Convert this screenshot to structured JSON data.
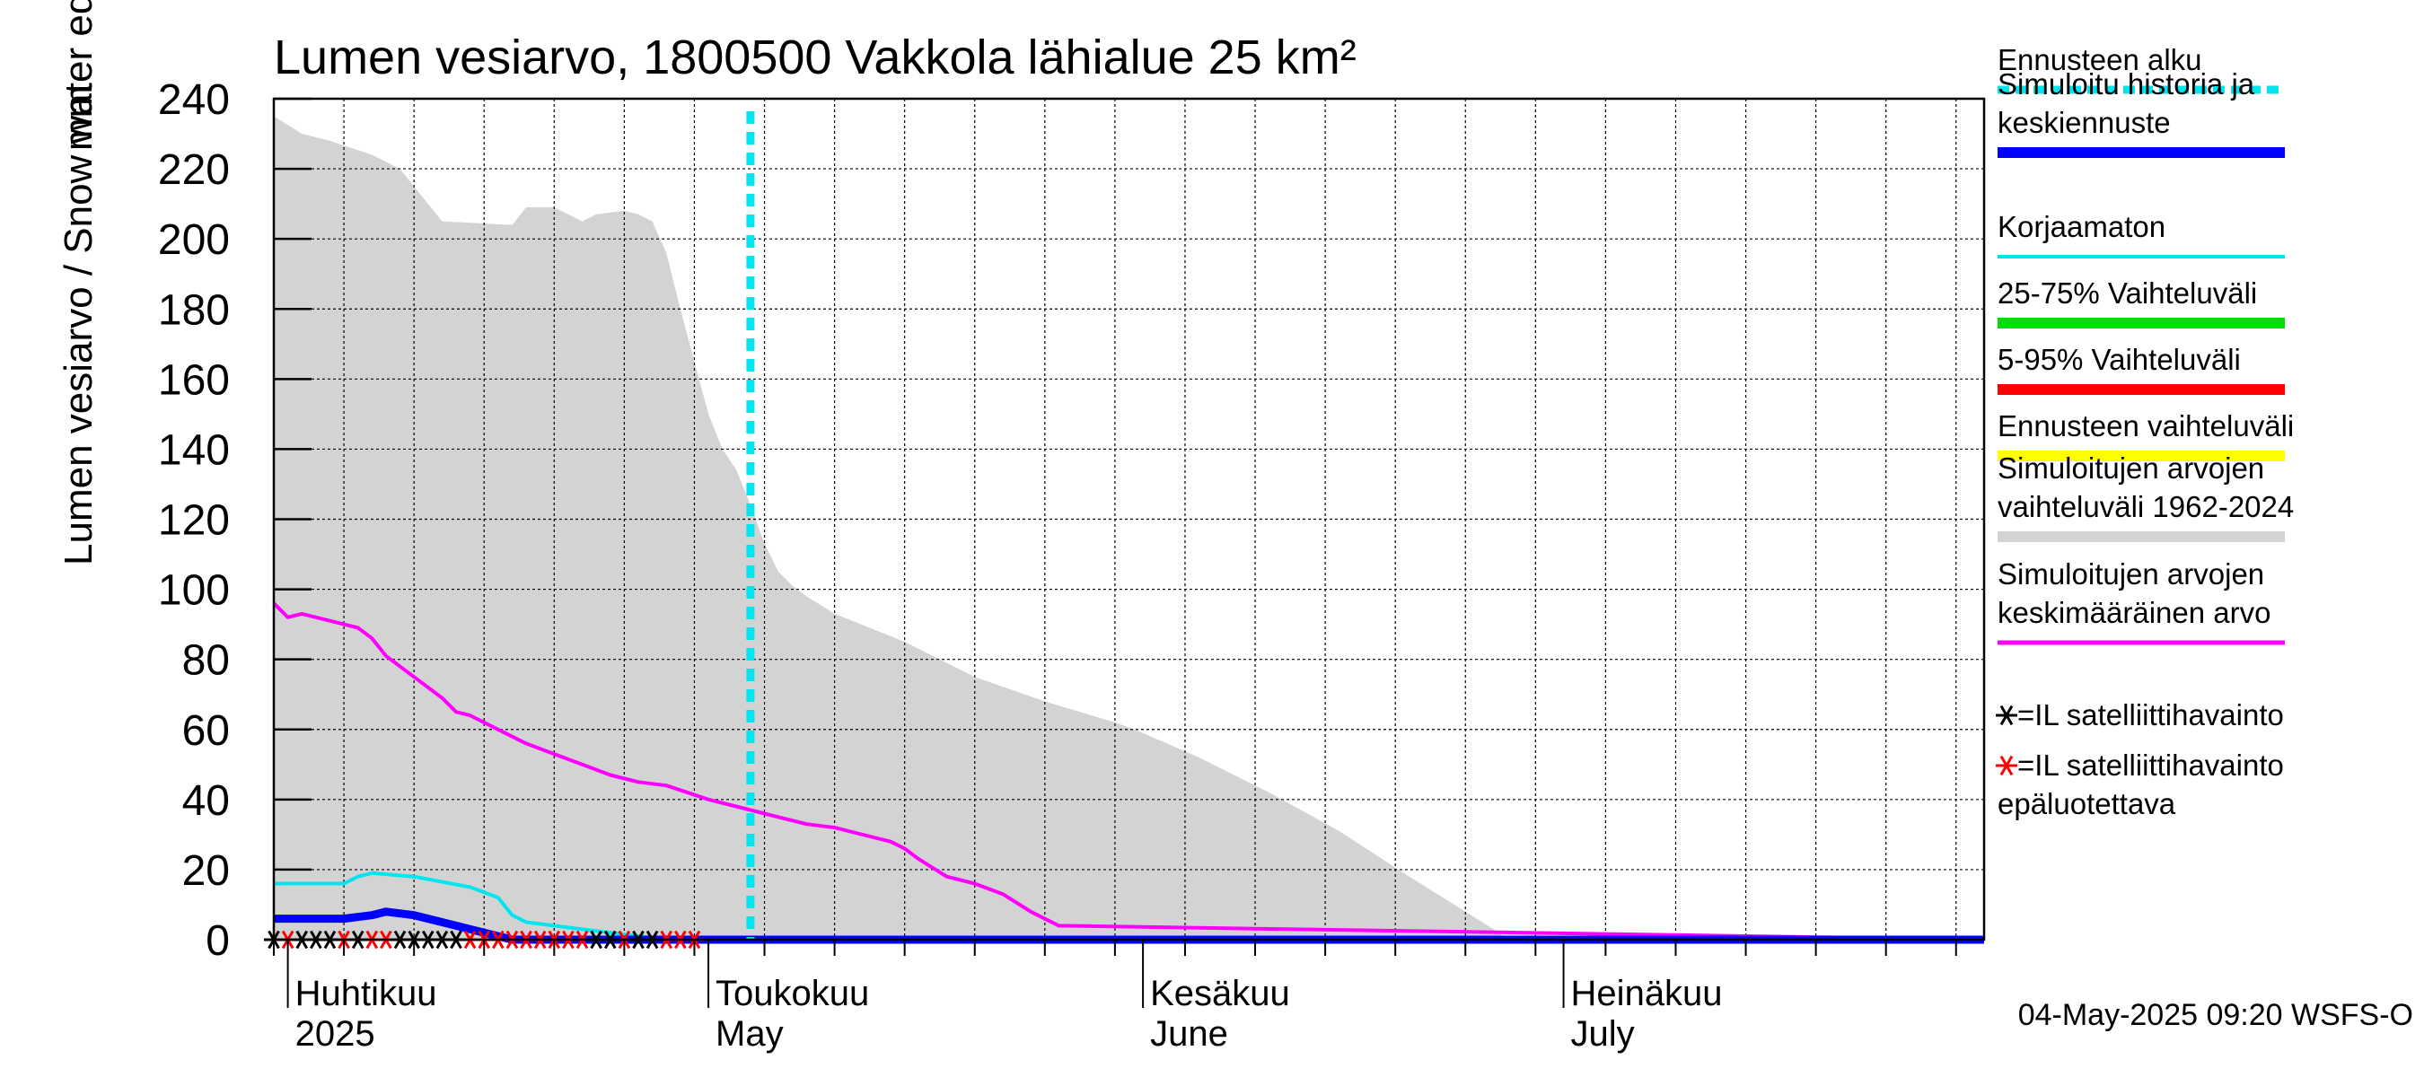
{
  "chart_data": {
    "type": "line",
    "title": "Lumen vesiarvo, 1800500 Vakkola lähialue 25 km²",
    "ylabel": "Lumen vesiarvo / Snow water equiv.",
    "yunit": "mm",
    "ylim": [
      0,
      240
    ],
    "yticks": [
      0,
      20,
      40,
      60,
      80,
      100,
      120,
      140,
      160,
      180,
      200,
      220,
      240
    ],
    "xlim": [
      "2025-03-31",
      "2025-07-31"
    ],
    "grid": true,
    "legend_position": "right",
    "month_labels": [
      {
        "date": "2025-04-01",
        "fi": "Huhtikuu",
        "en": "2025"
      },
      {
        "date": "2025-05-01",
        "fi": "Toukokuu",
        "en": "May"
      },
      {
        "date": "2025-06-01",
        "fi": "Kesäkuu",
        "en": "June"
      },
      {
        "date": "2025-07-01",
        "fi": "Heinäkuu",
        "en": "July"
      }
    ],
    "forecast_start": "2025-05-04",
    "timestamp": "04-May-2025 09:20 WSFS-O",
    "series": [
      {
        "name": "Simuloitujen arvojen vaihteluväli 1962-2024",
        "kind": "band",
        "color": "#d3d3d3",
        "x": [
          "2025-03-31",
          "2025-04-02",
          "2025-04-04",
          "2025-04-07",
          "2025-04-09",
          "2025-04-10",
          "2025-04-12",
          "2025-04-17",
          "2025-04-18",
          "2025-04-20",
          "2025-04-22",
          "2025-04-23",
          "2025-04-25",
          "2025-04-26",
          "2025-04-27",
          "2025-04-28",
          "2025-04-29",
          "2025-04-30",
          "2025-05-01",
          "2025-05-02",
          "2025-05-03",
          "2025-05-04",
          "2025-05-05",
          "2025-05-06",
          "2025-05-07",
          "2025-05-08",
          "2025-05-10",
          "2025-05-15",
          "2025-05-20",
          "2025-05-25",
          "2025-05-30",
          "2025-06-01",
          "2025-06-05",
          "2025-06-10",
          "2025-06-15",
          "2025-06-20",
          "2025-06-24",
          "2025-06-26",
          "2025-06-27",
          "2025-07-31"
        ],
        "min": [
          0,
          0,
          0,
          0,
          0,
          0,
          0,
          0,
          0,
          0,
          0,
          0,
          0,
          0,
          0,
          0,
          0,
          0,
          0,
          0,
          0,
          0,
          0,
          0,
          0,
          0,
          0,
          0,
          0,
          0,
          0,
          0,
          0,
          0,
          0,
          0,
          0,
          0,
          0,
          0
        ],
        "max": [
          235,
          230,
          228,
          224,
          220,
          215,
          205,
          204,
          209,
          209,
          205,
          207,
          208,
          207,
          205,
          196,
          180,
          165,
          150,
          140,
          134,
          124,
          113,
          105,
          101,
          98,
          93,
          85,
          75,
          68,
          62,
          59,
          52,
          42,
          31,
          18,
          8,
          3,
          0,
          0
        ]
      },
      {
        "name": "Simuloitujen arvojen keskimääräinen arvo",
        "kind": "line",
        "color": "#ff00ff",
        "x": [
          "2025-03-31",
          "2025-04-01",
          "2025-04-02",
          "2025-04-04",
          "2025-04-06",
          "2025-04-07",
          "2025-04-08",
          "2025-04-10",
          "2025-04-12",
          "2025-04-13",
          "2025-04-14",
          "2025-04-16",
          "2025-04-18",
          "2025-04-20",
          "2025-04-22",
          "2025-04-24",
          "2025-04-26",
          "2025-04-28",
          "2025-05-01",
          "2025-05-04",
          "2025-05-06",
          "2025-05-08",
          "2025-05-10",
          "2025-05-12",
          "2025-05-14",
          "2025-05-15",
          "2025-05-16",
          "2025-05-18",
          "2025-05-20",
          "2025-05-22",
          "2025-05-24",
          "2025-05-26",
          "2025-07-31"
        ],
        "y": [
          96,
          92,
          93,
          91,
          89,
          86,
          81,
          75,
          69,
          65,
          64,
          60,
          56,
          53,
          50,
          47,
          45,
          44,
          40,
          37,
          35,
          33,
          32,
          30,
          28,
          26,
          23,
          18,
          16,
          13,
          8,
          4,
          0
        ]
      },
      {
        "name": "Korjaamaton",
        "kind": "line",
        "color": "#00e5ee",
        "x": [
          "2025-03-31",
          "2025-04-02",
          "2025-04-05",
          "2025-04-06",
          "2025-04-07",
          "2025-04-10",
          "2025-04-14",
          "2025-04-16",
          "2025-04-17",
          "2025-04-18",
          "2025-04-22",
          "2025-04-26",
          "2025-04-28",
          "2025-07-31"
        ],
        "y": [
          16,
          16,
          16,
          18,
          19,
          18,
          15,
          12,
          7,
          5,
          3,
          1,
          0,
          0
        ]
      },
      {
        "name": "Simuloitu historia ja keskiennuste",
        "kind": "line",
        "color": "#0000ff",
        "x": [
          "2025-03-31",
          "2025-04-02",
          "2025-04-05",
          "2025-04-07",
          "2025-04-08",
          "2025-04-10",
          "2025-04-12",
          "2025-04-15",
          "2025-04-17",
          "2025-04-20",
          "2025-07-31"
        ],
        "y": [
          6,
          6,
          6,
          7,
          8,
          7,
          5,
          2,
          0,
          0,
          0
        ]
      },
      {
        "name": "25-75% Vaihteluväli",
        "kind": "legend-only",
        "color": "#00dd00"
      },
      {
        "name": "5-95% Vaihteluväli",
        "kind": "legend-only",
        "color": "#ff0000"
      },
      {
        "name": "Ennusteen vaihteluväli",
        "kind": "legend-only",
        "color": "#ffff00"
      }
    ],
    "satellite_obs": {
      "name": "=IL satelliittihavainto",
      "color": "#000000",
      "dates": [
        "2025-03-31",
        "2025-04-02",
        "2025-04-03",
        "2025-04-04",
        "2025-04-06",
        "2025-04-09",
        "2025-04-10",
        "2025-04-11",
        "2025-04-12",
        "2025-04-13",
        "2025-04-23",
        "2025-04-24",
        "2025-04-26",
        "2025-04-27"
      ],
      "value": 0
    },
    "satellite_obs_unreliable": {
      "name_line1": "=IL satelliittihavainto",
      "name_line2": "epäluotettava",
      "color": "#ff0000",
      "dates": [
        "2025-04-01",
        "2025-04-05",
        "2025-04-07",
        "2025-04-08",
        "2025-04-14",
        "2025-04-15",
        "2025-04-16",
        "2025-04-17",
        "2025-04-18",
        "2025-04-19",
        "2025-04-20",
        "2025-04-21",
        "2025-04-22",
        "2025-04-25",
        "2025-04-28",
        "2025-04-29",
        "2025-04-30"
      ],
      "value": 0
    },
    "legend": [
      {
        "label_lines": [
          "Ennusteen alku"
        ],
        "color": "#00e5ee",
        "style": "dotted"
      },
      {
        "label_lines": [
          "Simuloitu historia ja",
          "keskiennuste"
        ],
        "color": "#0000ff",
        "style": "thick"
      },
      {
        "label_lines": [
          "Korjaamaton"
        ],
        "color": "#00e5ee",
        "style": "thin"
      },
      {
        "label_lines": [
          "25-75% Vaihteluväli"
        ],
        "color": "#00dd00",
        "style": "thick"
      },
      {
        "label_lines": [
          "5-95% Vaihteluväli"
        ],
        "color": "#ff0000",
        "style": "thick"
      },
      {
        "label_lines": [
          "Ennusteen vaihteluväli"
        ],
        "color": "#ffff00",
        "style": "thick"
      },
      {
        "label_lines": [
          "Simuloitujen arvojen",
          "vaihteluväli 1962-2024"
        ],
        "color": "#d3d3d3",
        "style": "thick"
      },
      {
        "label_lines": [
          "Simuloitujen arvojen",
          "keskimääräinen arvo"
        ],
        "color": "#ff00ff",
        "style": "medium"
      }
    ]
  }
}
